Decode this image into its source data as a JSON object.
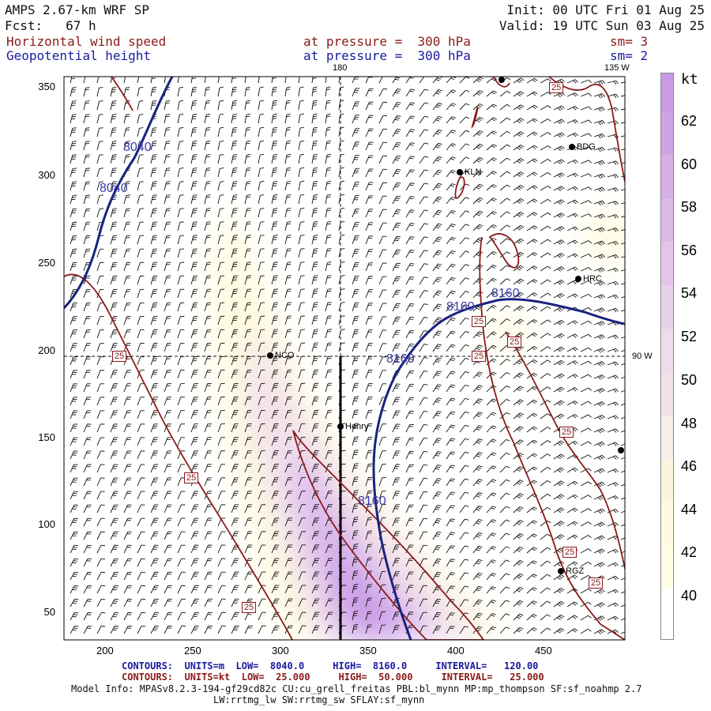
{
  "header": {
    "model": "AMPS 2.67-km WRF SP",
    "forecast": "Fcst:   67 h",
    "init": "Init: 00 UTC Fri 01 Aug 25",
    "valid": "Valid: 19 UTC Sun 03 Aug 25",
    "field1_name": "Horizontal wind speed",
    "field1_level": "at pressure =  300 hPa",
    "field1_sm": "sm= 3",
    "field2_name": "Geopotential height",
    "field2_level": "at pressure =  300 hPa",
    "field2_sm": "sm= 2"
  },
  "map": {
    "x_ticks": [
      "200",
      "250",
      "300",
      "350",
      "400",
      "450"
    ],
    "y_ticks": [
      "50",
      "100",
      "150",
      "200",
      "250",
      "300",
      "350"
    ],
    "meridian_labels": {
      "top": "180",
      "top_right": "135 W",
      "right": "90 W"
    },
    "stations": [
      "NCO",
      "Henry",
      "KLN",
      "BDG",
      "HRC",
      "RGZ"
    ],
    "height_contour_labels": [
      "8040",
      "8040",
      "8160",
      "8160",
      "8160",
      "8160"
    ],
    "speed_contour_labels": [
      "25",
      "25",
      "25",
      "25",
      "25",
      "25",
      "25",
      "25",
      "25",
      "25"
    ],
    "colors": {
      "height_contours": "#1a237e",
      "speed_contours": "#8b1a1a",
      "speed_fill_light": "#fffbe0",
      "speed_fill_mid": "#f3e1ea",
      "speed_fill_strong": "#c99ae6"
    }
  },
  "colorbar": {
    "unit": "kt",
    "ticks": [
      "62",
      "60",
      "58",
      "56",
      "54",
      "52",
      "50",
      "48",
      "46",
      "44",
      "42",
      "40"
    ],
    "colors": [
      "#c99ae6",
      "#cfa3e6",
      "#d6afe6",
      "#dcbae6",
      "#e3c6e8",
      "#e8d0ea",
      "#eedbec",
      "#f3e1ea",
      "#f6eee8",
      "#faf6dd",
      "#fffbe0",
      "#fffde8"
    ]
  },
  "footer": {
    "contours_height": "CONTOURS:  UNITS=m  LOW=  8040.0     HIGH=  8160.0     INTERVAL=   120.00",
    "contours_speed": "CONTOURS:  UNITS=kt  LOW=  25.000     HIGH=  50.000     INTERVAL=   25.000",
    "model_info1": "Model Info: MPASv8.2.3-194-gf29cd82c CU:cu_grell_freitas PBL:bl_mynn MP:mp_thompson SF:sf_noahmp 2.7",
    "model_info2": "LW:rrtmg_lw SW:rrtmg_sw SFLAY:sf_mynn"
  }
}
